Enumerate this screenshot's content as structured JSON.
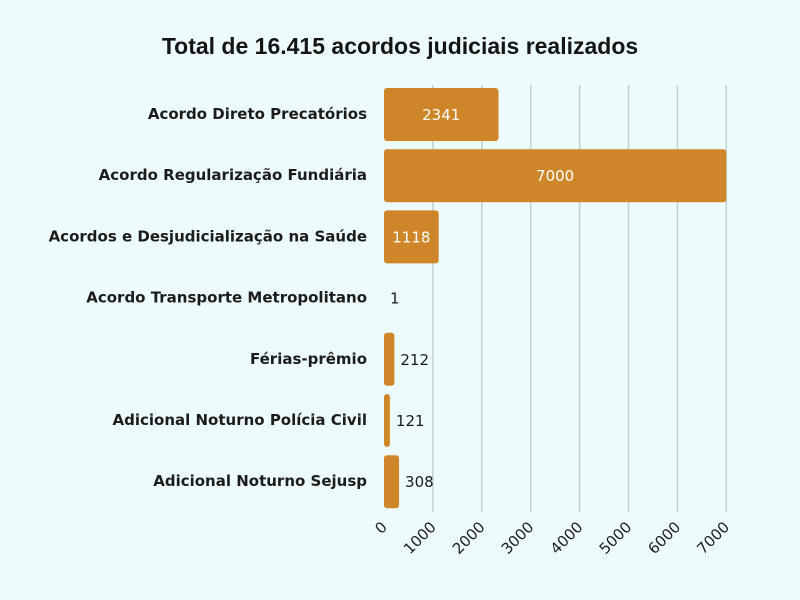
{
  "colors": {
    "background": "#eefbfd",
    "bar": "#cf8629",
    "value_inside": "#ffffff",
    "value_outside": "#1c1c1c",
    "grid": "#bfd0d6"
  },
  "chart_data": {
    "type": "bar",
    "orientation": "horizontal",
    "title": "Total de 16.415 acordos judiciais realizados",
    "xlabel": "",
    "ylabel": "",
    "categories": [
      "Acordo Direto Precatórios",
      "Acordo Regularização Fundiária",
      "Acordos e Desjudicialização na Saúde",
      "Acordo Transporte Metropolitano",
      "Férias-prêmio",
      "Adicional Noturno Polícia Civil",
      "Adicional Noturno Sejusp"
    ],
    "values": [
      2341,
      7000,
      1118,
      1,
      212,
      121,
      308
    ],
    "value_labels": [
      "2341",
      "7000",
      "1118",
      "1",
      "212",
      "121",
      "308"
    ],
    "xlim": [
      0,
      7000
    ],
    "xticks": [
      0,
      1000,
      2000,
      3000,
      4000,
      5000,
      6000,
      7000
    ],
    "xtick_labels": [
      "0",
      "1000",
      "2000",
      "3000",
      "4000",
      "5000",
      "6000",
      "7000"
    ],
    "grid": "vertical",
    "legend": "none"
  }
}
